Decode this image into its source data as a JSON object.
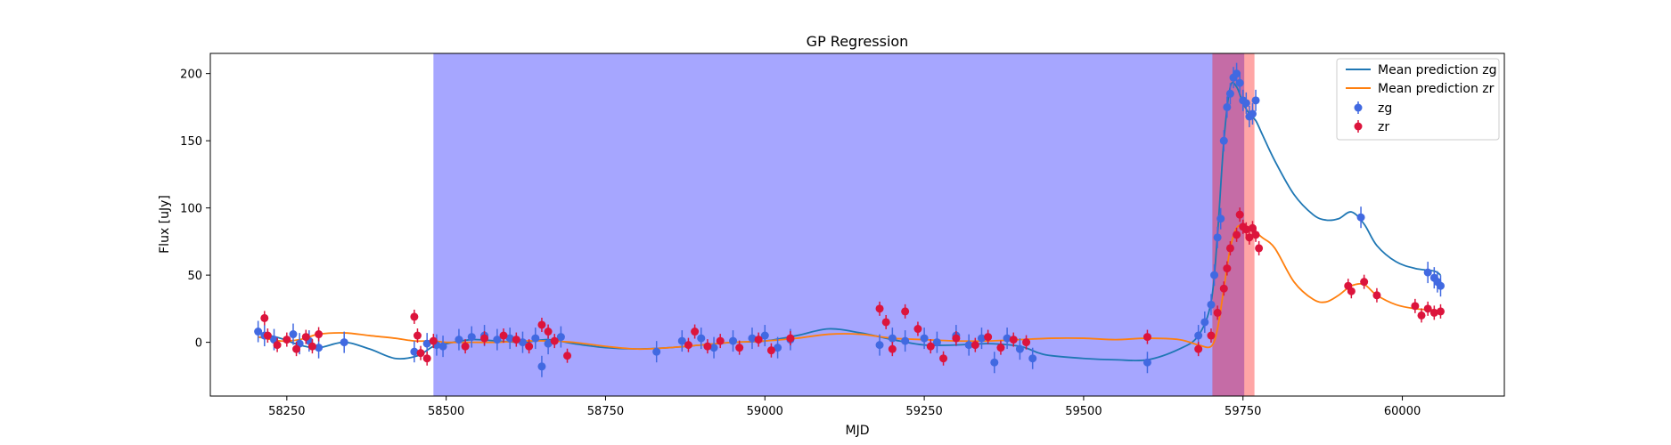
{
  "chart_data": {
    "type": "scatter",
    "title": "GP Regression",
    "xlabel": "MJD",
    "ylabel": "Flux [uJy]",
    "xlim": [
      58130,
      60160
    ],
    "ylim": [
      -40,
      215
    ],
    "xticks": [
      58250,
      58500,
      58750,
      59000,
      59250,
      59500,
      59750,
      60000
    ],
    "yticks": [
      0,
      50,
      100,
      150,
      200
    ],
    "grid": false,
    "legend_position": "top-right",
    "shaded_spans": [
      {
        "x0": 58480,
        "x1": 59752,
        "color": "#0000ff",
        "opacity": 0.35
      },
      {
        "x0": 59702,
        "x1": 59768,
        "color": "#ff0000",
        "opacity": 0.35
      }
    ],
    "series": [
      {
        "name": "Mean prediction zg",
        "kind": "line",
        "color": "#1f77b4",
        "x": [
          58205,
          58240,
          58270,
          58300,
          58340,
          58380,
          58420,
          58455,
          58480,
          58500,
          58540,
          58580,
          58620,
          58660,
          58700,
          58750,
          58800,
          58850,
          58900,
          58950,
          59000,
          59050,
          59100,
          59150,
          59200,
          59250,
          59300,
          59350,
          59400,
          59430,
          59450,
          59500,
          59550,
          59600,
          59650,
          59680,
          59700,
          59710,
          59720,
          59730,
          59740,
          59750,
          59760,
          59770,
          59780,
          59800,
          59830,
          59860,
          59880,
          59900,
          59920,
          59940,
          59960,
          59990,
          60020,
          60050,
          60060
        ],
        "y": [
          7,
          3,
          -2,
          -4,
          0,
          -5,
          -12,
          -10,
          -3,
          -1,
          2,
          1,
          0,
          2,
          -1,
          -4,
          -5,
          -4,
          -2,
          0,
          1,
          5,
          10,
          7,
          2,
          -2,
          -2,
          -1,
          -3,
          -8,
          -10,
          -12,
          -13,
          -13,
          -5,
          5,
          30,
          80,
          150,
          190,
          190,
          178,
          170,
          165,
          155,
          135,
          110,
          95,
          91,
          92,
          97,
          88,
          72,
          60,
          55,
          53,
          50
        ]
      },
      {
        "name": "Mean prediction zr",
        "kind": "line",
        "color": "#ff7f0e",
        "x": [
          58205,
          58240,
          58270,
          58300,
          58340,
          58380,
          58420,
          58450,
          58480,
          58500,
          58540,
          58580,
          58620,
          58660,
          58700,
          58750,
          58800,
          58850,
          58900,
          58950,
          59000,
          59050,
          59100,
          59150,
          59200,
          59250,
          59300,
          59350,
          59400,
          59450,
          59500,
          59550,
          59600,
          59650,
          59680,
          59700,
          59710,
          59720,
          59730,
          59740,
          59750,
          59760,
          59770,
          59780,
          59800,
          59830,
          59860,
          59880,
          59900,
          59920,
          59940,
          59960,
          59990,
          60020,
          60050,
          60060
        ],
        "y": [
          4,
          1,
          2,
          6,
          7,
          5,
          3,
          1,
          1,
          0,
          0,
          0,
          1,
          1,
          0,
          -3,
          -5,
          -4,
          -2,
          0,
          1,
          3,
          6,
          6,
          3,
          2,
          1,
          1,
          2,
          3,
          3,
          2,
          3,
          2,
          -2,
          -3,
          10,
          40,
          70,
          85,
          87,
          85,
          82,
          78,
          70,
          45,
          32,
          30,
          35,
          42,
          43,
          35,
          28,
          25,
          24,
          23
        ]
      },
      {
        "name": "zg",
        "kind": "scatter",
        "color": "#4169e1",
        "x": [
          58205,
          58215,
          58230,
          58260,
          58270,
          58285,
          58300,
          58340,
          58450,
          58470,
          58485,
          58495,
          58520,
          58540,
          58560,
          58580,
          58600,
          58620,
          58640,
          58650,
          58660,
          58680,
          58830,
          58870,
          58900,
          58920,
          58950,
          58980,
          59000,
          59020,
          59040,
          59180,
          59200,
          59220,
          59250,
          59270,
          59300,
          59320,
          59340,
          59360,
          59380,
          59400,
          59420,
          59600,
          59680,
          59690,
          59700,
          59705,
          59710,
          59715,
          59720,
          59725,
          59730,
          59735,
          59740,
          59745,
          59750,
          59755,
          59760,
          59765,
          59770,
          59935,
          60040,
          60050,
          60055,
          60060
        ],
        "y": [
          8,
          5,
          2,
          6,
          -1,
          1,
          -4,
          0,
          -7,
          -1,
          -2,
          -3,
          2,
          4,
          5,
          2,
          3,
          0,
          3,
          -18,
          -1,
          4,
          -7,
          1,
          3,
          -4,
          1,
          3,
          5,
          -4,
          2,
          -2,
          3,
          1,
          3,
          0,
          5,
          -2,
          3,
          -15,
          3,
          -5,
          -12,
          -15,
          5,
          15,
          28,
          50,
          78,
          92,
          150,
          175,
          185,
          197,
          200,
          193,
          180,
          178,
          168,
          170,
          180,
          93,
          52,
          48,
          45,
          42
        ]
      },
      {
        "name": "zr",
        "kind": "scatter",
        "color": "#dc143c",
        "x": [
          58215,
          58220,
          58235,
          58250,
          58265,
          58280,
          58290,
          58300,
          58450,
          58455,
          58460,
          58470,
          58480,
          58530,
          58560,
          58590,
          58610,
          58630,
          58650,
          58660,
          58670,
          58690,
          58880,
          58890,
          58910,
          58930,
          58960,
          58990,
          59010,
          59040,
          59180,
          59190,
          59200,
          59220,
          59240,
          59260,
          59280,
          59300,
          59330,
          59350,
          59370,
          59390,
          59410,
          59600,
          59680,
          59700,
          59710,
          59720,
          59725,
          59730,
          59740,
          59745,
          59750,
          59755,
          59760,
          59765,
          59770,
          59775,
          59915,
          59920,
          59940,
          59960,
          60020,
          60030,
          60040,
          60050,
          60060
        ],
        "y": [
          18,
          5,
          -2,
          2,
          -5,
          4,
          -3,
          6,
          19,
          5,
          -8,
          -12,
          1,
          -3,
          3,
          5,
          2,
          -3,
          13,
          8,
          1,
          -10,
          -2,
          8,
          -3,
          1,
          -4,
          2,
          -6,
          3,
          25,
          15,
          -5,
          23,
          10,
          -3,
          -12,
          3,
          -2,
          4,
          -4,
          2,
          0,
          4,
          -5,
          5,
          22,
          40,
          55,
          70,
          80,
          95,
          86,
          84,
          78,
          85,
          80,
          70,
          42,
          38,
          45,
          35,
          27,
          20,
          25,
          22,
          23
        ]
      }
    ]
  }
}
